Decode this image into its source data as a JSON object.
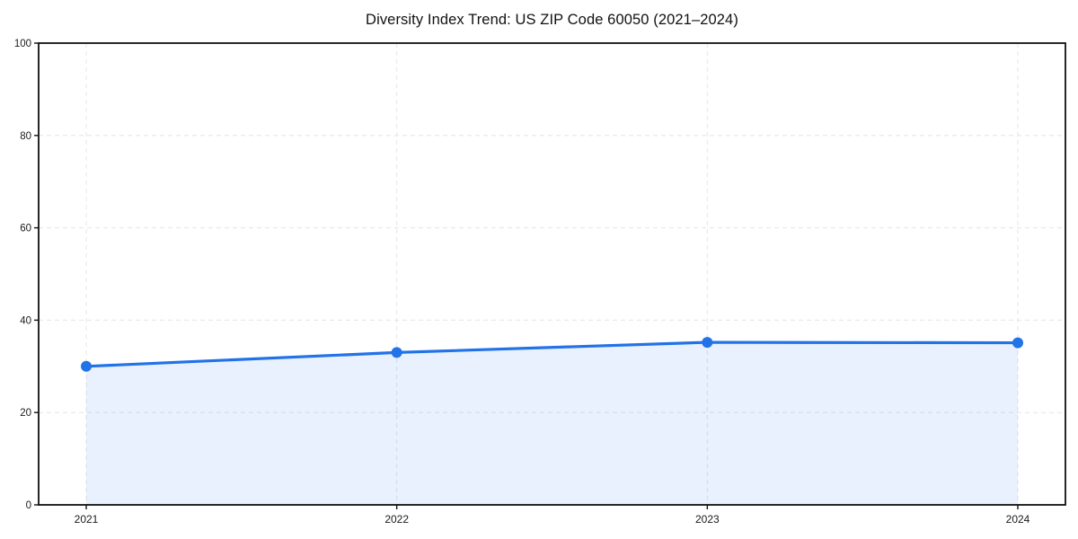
{
  "chart_data": {
    "type": "line",
    "title": "Diversity Index Trend: US ZIP Code 60050 (2021–2024)",
    "categories": [
      "2021",
      "2022",
      "2023",
      "2024"
    ],
    "series": [
      {
        "name": "Diversity Index",
        "values": [
          30,
          33,
          35.2,
          35.1
        ]
      }
    ],
    "xlabel": "",
    "ylabel": "",
    "ylim": [
      0,
      100
    ],
    "yticks": [
      0,
      20,
      40,
      60,
      80,
      100
    ],
    "grid": true,
    "grid_style": "dashed",
    "area_fill": true,
    "legend_position": "none",
    "colors": {
      "line": "#2272e8",
      "marker": "#2272e8",
      "area_fill": "rgba(34,114,232,0.10)",
      "grid": "#e7e7e7",
      "spine": "#111111",
      "tick_label": "#1a1a1a",
      "title": "#111111",
      "background": "#ffffff"
    }
  }
}
